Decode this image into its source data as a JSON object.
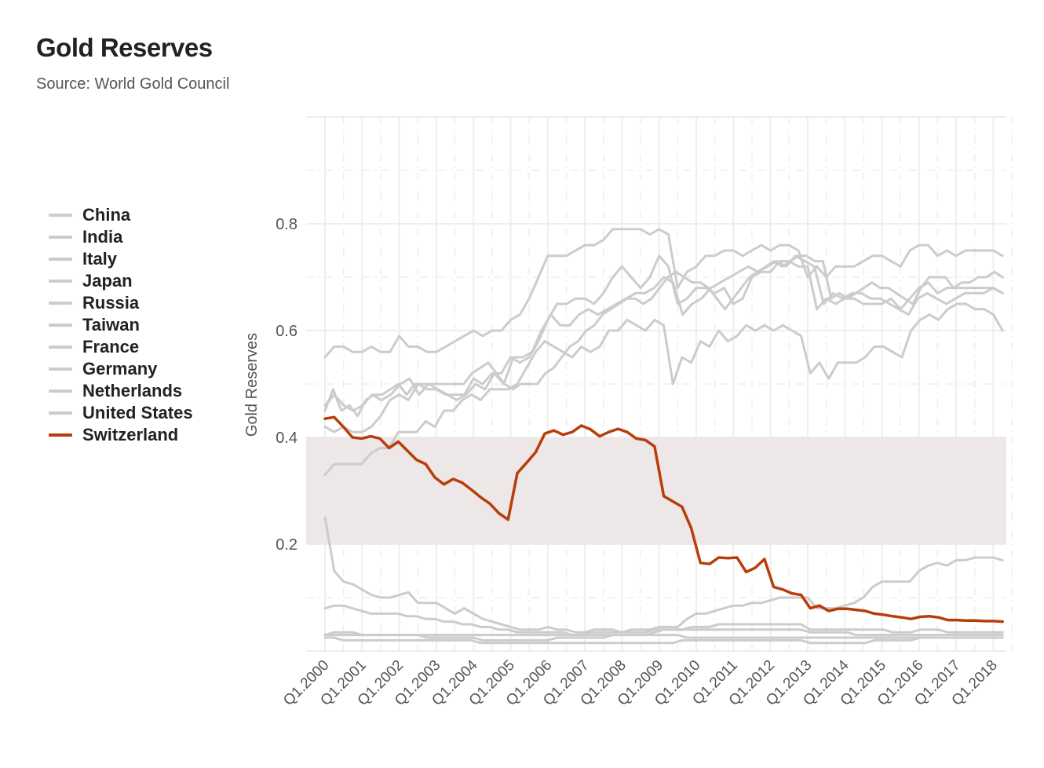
{
  "header": {
    "title": "Gold Reserves",
    "subtitle": "Source: World Gold Council"
  },
  "colors": {
    "highlight": "#b83d0b",
    "others": "#cccccc",
    "band": "#ede7e7",
    "grid": "#eeeeee"
  },
  "chart_data": {
    "type": "line",
    "title": "Gold Reserves",
    "subtitle": "Source: World Gold Council",
    "ylabel": "Gold Reserves",
    "xlabel": "",
    "ylim": [
      0,
      1.0
    ],
    "yticks": [
      0.2,
      0.4,
      0.6,
      0.8
    ],
    "x_tick_labels": [
      "Q1.2000",
      "Q1.2001",
      "Q1.2002",
      "Q1.2003",
      "Q1.2004",
      "Q1.2005",
      "Q1.2006",
      "Q1.2007",
      "Q1.2008",
      "Q1.2009",
      "Q1.2010",
      "Q1.2011",
      "Q1.2012",
      "Q1.2013",
      "Q1.2014",
      "Q1.2015",
      "Q1.2016",
      "Q1.2017",
      "Q1.2018"
    ],
    "x_range": [
      "Q1.2000",
      "Q2.2018"
    ],
    "highlight_band": [
      0.2,
      0.4
    ],
    "grid": true,
    "legend_position": "left",
    "highlight_series": "Switzerland",
    "series": [
      {
        "name": "China",
        "values": [
          0.45,
          0.49,
          0.45,
          0.46,
          0.44,
          0.47,
          0.48,
          0.48,
          0.49,
          0.5,
          0.48,
          0.5,
          0.5,
          0.5,
          0.5,
          0.5,
          0.5,
          0.5,
          0.52,
          0.53,
          0.54,
          0.52,
          0.5,
          0.49,
          0.5,
          0.5,
          0.5,
          0.52,
          0.53,
          0.55,
          0.57,
          0.58,
          0.6,
          0.61,
          0.63,
          0.64,
          0.65,
          0.66,
          0.66,
          0.65,
          0.66,
          0.68,
          0.7,
          0.71,
          0.7,
          0.69,
          0.69,
          0.68,
          0.66,
          0.64,
          0.66,
          0.68,
          0.7,
          0.71,
          0.72,
          0.73,
          0.72,
          0.73,
          0.74,
          0.74,
          0.73,
          0.73,
          0.66,
          0.67,
          0.66,
          0.67,
          0.68,
          0.69,
          0.68,
          0.68,
          0.67,
          0.66,
          0.65,
          0.68,
          0.7,
          0.7,
          0.7,
          0.68,
          0.69,
          0.69,
          0.7,
          0.7,
          0.71,
          0.7
        ]
      },
      {
        "name": "India",
        "values": [
          0.55,
          0.57,
          0.57,
          0.56,
          0.56,
          0.57,
          0.56,
          0.56,
          0.59,
          0.57,
          0.57,
          0.56,
          0.56,
          0.57,
          0.58,
          0.59,
          0.6,
          0.59,
          0.6,
          0.6,
          0.62,
          0.63,
          0.66,
          0.7,
          0.74,
          0.74,
          0.74,
          0.75,
          0.76,
          0.76,
          0.77,
          0.79,
          0.79,
          0.79,
          0.79,
          0.78,
          0.79,
          0.78,
          0.68,
          0.71,
          0.72,
          0.74,
          0.74,
          0.75,
          0.75,
          0.74,
          0.75,
          0.76,
          0.75,
          0.76,
          0.76,
          0.75,
          0.7,
          0.72,
          0.7,
          0.72,
          0.72,
          0.72,
          0.73,
          0.74,
          0.74,
          0.73,
          0.72,
          0.75,
          0.76,
          0.76,
          0.74,
          0.75,
          0.74,
          0.75,
          0.75,
          0.75,
          0.75,
          0.74
        ]
      },
      {
        "name": "Italy",
        "values": [
          0.46,
          0.48,
          0.46,
          0.45,
          0.46,
          0.48,
          0.47,
          0.48,
          0.5,
          0.51,
          0.48,
          0.5,
          0.49,
          0.48,
          0.47,
          0.48,
          0.5,
          0.49,
          0.52,
          0.5,
          0.55,
          0.55,
          0.56,
          0.6,
          0.63,
          0.61,
          0.61,
          0.63,
          0.64,
          0.63,
          0.64,
          0.65,
          0.66,
          0.67,
          0.67,
          0.68,
          0.7,
          0.69,
          0.63,
          0.65,
          0.66,
          0.68,
          0.69,
          0.7,
          0.71,
          0.72,
          0.71,
          0.72,
          0.73,
          0.72,
          0.74,
          0.73,
          0.72,
          0.65,
          0.67,
          0.66,
          0.67,
          0.67,
          0.66,
          0.66,
          0.65,
          0.64,
          0.63,
          0.66,
          0.67,
          0.66,
          0.65,
          0.66,
          0.67,
          0.67,
          0.67,
          0.68,
          0.67
        ]
      },
      {
        "name": "Japan",
        "values": [
          0.33,
          0.35,
          0.35,
          0.35,
          0.35,
          0.37,
          0.38,
          0.38,
          0.41,
          0.41,
          0.41,
          0.43,
          0.42,
          0.45,
          0.45,
          0.47,
          0.48,
          0.47,
          0.49,
          0.49,
          0.49,
          0.5,
          0.53,
          0.56,
          0.58,
          0.57,
          0.56,
          0.55,
          0.57,
          0.56,
          0.57,
          0.6,
          0.6,
          0.62,
          0.61,
          0.6,
          0.62,
          0.61,
          0.5,
          0.55,
          0.54,
          0.58,
          0.57,
          0.6,
          0.58,
          0.59,
          0.61,
          0.6,
          0.61,
          0.6,
          0.61,
          0.6,
          0.59,
          0.52,
          0.54,
          0.51,
          0.54,
          0.54,
          0.54,
          0.55,
          0.57,
          0.57,
          0.56,
          0.55,
          0.6,
          0.62,
          0.63,
          0.62,
          0.64,
          0.65,
          0.65,
          0.64,
          0.64,
          0.63,
          0.6
        ]
      },
      {
        "name": "Russia",
        "values": [
          0.25,
          0.15,
          0.13,
          0.125,
          0.115,
          0.105,
          0.1,
          0.1,
          0.105,
          0.11,
          0.09,
          0.09,
          0.09,
          0.08,
          0.07,
          0.08,
          0.07,
          0.06,
          0.055,
          0.05,
          0.045,
          0.04,
          0.04,
          0.04,
          0.045,
          0.04,
          0.04,
          0.035,
          0.035,
          0.04,
          0.04,
          0.04,
          0.035,
          0.04,
          0.04,
          0.04,
          0.045,
          0.045,
          0.045,
          0.06,
          0.07,
          0.07,
          0.075,
          0.08,
          0.085,
          0.085,
          0.09,
          0.09,
          0.095,
          0.1,
          0.1,
          0.1,
          0.1,
          0.08,
          0.08,
          0.08,
          0.085,
          0.09,
          0.1,
          0.12,
          0.13,
          0.13,
          0.13,
          0.13,
          0.15,
          0.16,
          0.165,
          0.16,
          0.17,
          0.17,
          0.175,
          0.175,
          0.175,
          0.17
        ]
      },
      {
        "name": "Taiwan",
        "values": [
          0.08,
          0.085,
          0.085,
          0.08,
          0.075,
          0.07,
          0.07,
          0.07,
          0.07,
          0.065,
          0.065,
          0.06,
          0.06,
          0.055,
          0.055,
          0.05,
          0.05,
          0.045,
          0.045,
          0.04,
          0.04,
          0.035,
          0.035,
          0.035,
          0.035,
          0.035,
          0.035,
          0.03,
          0.03,
          0.035,
          0.035,
          0.035,
          0.035,
          0.035,
          0.035,
          0.035,
          0.04,
          0.04,
          0.04,
          0.04,
          0.045,
          0.045,
          0.045,
          0.05,
          0.05,
          0.05,
          0.05,
          0.05,
          0.05,
          0.05,
          0.05,
          0.05,
          0.05,
          0.04,
          0.04,
          0.04,
          0.04,
          0.04,
          0.04,
          0.04,
          0.04,
          0.04,
          0.035,
          0.035,
          0.035,
          0.04,
          0.04,
          0.04,
          0.035,
          0.035,
          0.035,
          0.035,
          0.035,
          0.035,
          0.035
        ]
      },
      {
        "name": "France",
        "values": [
          0.42,
          0.41,
          0.42,
          0.41,
          0.41,
          0.42,
          0.44,
          0.47,
          0.48,
          0.47,
          0.5,
          0.49,
          0.49,
          0.48,
          0.48,
          0.48,
          0.51,
          0.5,
          0.52,
          0.52,
          0.55,
          0.54,
          0.55,
          0.58,
          0.62,
          0.65,
          0.65,
          0.66,
          0.66,
          0.65,
          0.67,
          0.7,
          0.72,
          0.7,
          0.68,
          0.7,
          0.74,
          0.72,
          0.65,
          0.66,
          0.68,
          0.68,
          0.67,
          0.68,
          0.65,
          0.66,
          0.7,
          0.71,
          0.71,
          0.73,
          0.73,
          0.72,
          0.72,
          0.64,
          0.66,
          0.65,
          0.66,
          0.66,
          0.65,
          0.65,
          0.65,
          0.66,
          0.64,
          0.66,
          0.68,
          0.69,
          0.67,
          0.68,
          0.68,
          0.68,
          0.68,
          0.68,
          0.68,
          0.67
        ]
      },
      {
        "name": "Germany",
        "values": [
          0.03,
          0.03,
          0.03,
          0.03,
          0.03,
          0.03,
          0.03,
          0.03,
          0.03,
          0.03,
          0.03,
          0.03,
          0.03,
          0.03,
          0.03,
          0.03,
          0.03,
          0.03,
          0.03,
          0.03,
          0.03,
          0.03,
          0.03,
          0.03,
          0.03,
          0.03,
          0.03,
          0.03,
          0.03,
          0.03,
          0.03,
          0.03,
          0.03,
          0.03,
          0.03,
          0.03,
          0.035,
          0.04,
          0.04,
          0.04,
          0.04,
          0.04,
          0.04,
          0.04,
          0.04,
          0.04,
          0.04,
          0.04,
          0.04,
          0.04,
          0.04,
          0.04,
          0.04,
          0.035,
          0.035,
          0.035,
          0.035,
          0.035,
          0.03,
          0.03,
          0.03,
          0.03,
          0.03,
          0.03,
          0.03,
          0.03,
          0.03,
          0.03,
          0.03,
          0.03,
          0.03,
          0.03,
          0.03,
          0.03,
          0.03
        ]
      },
      {
        "name": "Netherlands",
        "values": [
          0.03,
          0.035,
          0.035,
          0.035,
          0.03,
          0.03,
          0.03,
          0.03,
          0.03,
          0.03,
          0.03,
          0.025,
          0.025,
          0.025,
          0.025,
          0.025,
          0.025,
          0.02,
          0.02,
          0.02,
          0.02,
          0.02,
          0.02,
          0.02,
          0.02,
          0.025,
          0.025,
          0.025,
          0.025,
          0.025,
          0.025,
          0.03,
          0.03,
          0.03,
          0.03,
          0.03,
          0.03,
          0.03,
          0.03,
          0.025,
          0.025,
          0.025,
          0.025,
          0.025,
          0.025,
          0.025,
          0.025,
          0.025,
          0.025,
          0.025,
          0.025,
          0.025,
          0.025,
          0.025,
          0.025,
          0.025,
          0.025,
          0.025,
          0.025,
          0.025,
          0.025,
          0.025,
          0.025,
          0.025,
          0.025,
          0.025,
          0.025,
          0.025,
          0.025,
          0.025,
          0.025,
          0.025,
          0.025,
          0.025
        ]
      },
      {
        "name": "United States",
        "values": [
          0.025,
          0.025,
          0.02,
          0.02,
          0.02,
          0.02,
          0.02,
          0.02,
          0.02,
          0.02,
          0.02,
          0.02,
          0.02,
          0.02,
          0.02,
          0.02,
          0.02,
          0.015,
          0.015,
          0.015,
          0.015,
          0.015,
          0.015,
          0.015,
          0.015,
          0.015,
          0.015,
          0.015,
          0.015,
          0.015,
          0.015,
          0.015,
          0.015,
          0.015,
          0.015,
          0.015,
          0.015,
          0.015,
          0.015,
          0.02,
          0.02,
          0.02,
          0.02,
          0.02,
          0.02,
          0.02,
          0.02,
          0.02,
          0.02,
          0.02,
          0.02,
          0.02,
          0.02,
          0.015,
          0.015,
          0.015,
          0.015,
          0.015,
          0.015,
          0.015,
          0.02,
          0.02,
          0.02,
          0.02,
          0.02,
          0.025,
          0.025,
          0.025,
          0.025,
          0.025,
          0.025,
          0.025,
          0.025,
          0.025,
          0.025
        ]
      },
      {
        "name": "Switzerland",
        "values": [
          0.435,
          0.438,
          0.42,
          0.4,
          0.398,
          0.402,
          0.398,
          0.38,
          0.392,
          0.375,
          0.358,
          0.35,
          0.325,
          0.312,
          0.322,
          0.315,
          0.302,
          0.288,
          0.276,
          0.258,
          0.246,
          0.333,
          0.352,
          0.372,
          0.407,
          0.413,
          0.405,
          0.41,
          0.422,
          0.415,
          0.402,
          0.41,
          0.416,
          0.41,
          0.398,
          0.395,
          0.383,
          0.29,
          0.28,
          0.27,
          0.23,
          0.165,
          0.163,
          0.175,
          0.174,
          0.175,
          0.148,
          0.156,
          0.172,
          0.12,
          0.115,
          0.108,
          0.105,
          0.08,
          0.085,
          0.075,
          0.079,
          0.079,
          0.077,
          0.075,
          0.07,
          0.068,
          0.065,
          0.063,
          0.06,
          0.064,
          0.065,
          0.063,
          0.058,
          0.058,
          0.057,
          0.057,
          0.056,
          0.056,
          0.055
        ]
      }
    ]
  }
}
